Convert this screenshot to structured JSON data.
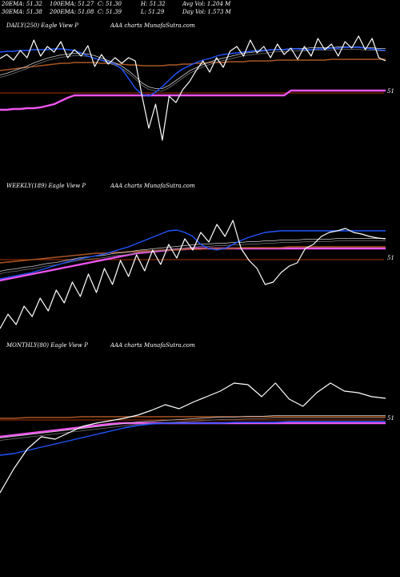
{
  "header": {
    "row1": [
      "20EMA: 51.32",
      "100EMA: 51.27",
      "C: 51.30",
      "H: 51.32",
      "Avg Vol: 1.204 M"
    ],
    "row2": [
      "30EMA: 51.38",
      "200EMA: 51.08",
      "C: 51.39",
      "L: 51.29",
      "Day Vol: 1.573 M"
    ]
  },
  "colors": {
    "background": "#000000",
    "price": "#ffffff",
    "ema_blue": "#2255ff",
    "ema_magenta": "#ee55ee",
    "ema_orange": "#aa5522",
    "ema_gray": "#999999",
    "level_line": "#aa3300"
  },
  "chart_data": [
    {
      "type": "line",
      "title": "DAILY(250) Eagle   View   P",
      "source": "AAA charts MunafaSutra.com",
      "level_label": "51",
      "series": [
        {
          "color": "#ffffff",
          "values": [
            73,
            68,
            75,
            63,
            72,
            50,
            70,
            58,
            65,
            52,
            72,
            62,
            70,
            57,
            83,
            68,
            80,
            72,
            79,
            72,
            76,
            120,
            160,
            130,
            175,
            120,
            128,
            112,
            102,
            88,
            76,
            90,
            72,
            84,
            64,
            58,
            70,
            50,
            66,
            58,
            72,
            55,
            68,
            60,
            74,
            58,
            70,
            48,
            62,
            55,
            70,
            52,
            60,
            45,
            62,
            48,
            72,
            76
          ]
        },
        {
          "color": "#2255ff",
          "values": [
            65,
            64,
            64,
            63,
            63,
            62,
            62,
            62,
            61,
            61,
            62,
            63,
            66,
            70,
            73,
            75,
            77,
            80,
            86,
            98,
            110,
            118,
            120,
            115,
            108,
            100,
            92,
            86,
            82,
            78,
            75,
            73,
            70,
            68,
            67,
            66,
            65,
            64,
            63,
            63,
            62,
            62,
            62,
            61,
            61,
            62,
            62,
            61,
            61,
            60,
            60,
            59,
            59,
            59,
            60,
            61,
            62,
            63
          ]
        },
        {
          "color": "#999999",
          "values": [
            95,
            93,
            90,
            87,
            84,
            80,
            77,
            74,
            72,
            70,
            69,
            68,
            68,
            69,
            71,
            74,
            77,
            80,
            84,
            90,
            97,
            105,
            110,
            112,
            112,
            108,
            102,
            96,
            90,
            86,
            82,
            79,
            76,
            74,
            72,
            70,
            68,
            67,
            66,
            65,
            64,
            63,
            63,
            62,
            62,
            62,
            61,
            61,
            61,
            61,
            60,
            60,
            60,
            60,
            61,
            61,
            62,
            62
          ]
        },
        {
          "color": "#aa5522",
          "values": [
            88,
            87,
            86,
            85,
            84,
            83,
            82,
            81,
            80,
            79,
            79,
            78,
            78,
            78,
            78,
            79,
            79,
            80,
            80,
            81,
            81,
            82,
            82,
            82,
            82,
            81,
            81,
            80,
            80,
            79,
            79,
            78,
            78,
            78,
            77,
            77,
            77,
            76,
            76,
            76,
            76,
            75,
            75,
            75,
            75,
            75,
            75,
            75,
            75,
            74,
            74,
            74,
            74,
            74,
            74,
            74,
            74,
            74
          ]
        },
        {
          "color": "#ee55ee",
          "values": [
            137,
            137,
            136,
            136,
            135,
            135,
            134,
            132,
            130,
            126,
            122,
            119,
            119,
            119,
            119,
            119,
            119,
            119,
            119,
            119,
            119,
            119,
            119,
            119,
            119,
            119,
            119,
            119,
            119,
            119,
            119,
            119,
            119,
            119,
            119,
            119,
            119,
            119,
            119,
            119,
            119,
            119,
            119,
            113,
            113,
            113,
            113,
            113,
            113,
            113,
            113,
            113,
            113,
            113,
            113,
            113,
            113,
            113
          ]
        }
      ]
    },
    {
      "type": "line",
      "title": "WEEKLY(189) Eagle   View   P",
      "source": "AAA charts MunafaSutra.com",
      "level_label": "51",
      "series": [
        {
          "color": "#ffffff",
          "values": [
            410,
            392,
            405,
            382,
            395,
            372,
            388,
            362,
            378,
            352,
            370,
            342,
            365,
            335,
            355,
            325,
            345,
            318,
            338,
            312,
            330,
            305,
            322,
            298,
            312,
            290,
            302,
            280,
            295,
            275,
            310,
            325,
            335,
            355,
            352,
            340,
            332,
            328,
            310,
            305,
            295,
            290,
            288,
            285,
            290,
            292,
            295,
            297,
            298
          ]
        },
        {
          "color": "#2255ff",
          "values": [
            348,
            346,
            344,
            342,
            340,
            337,
            334,
            331,
            328,
            325,
            323,
            321,
            319,
            317,
            314,
            311,
            308,
            304,
            300,
            296,
            292,
            288,
            287,
            290,
            295,
            305,
            310,
            312,
            310,
            305,
            300,
            296,
            293,
            290,
            289,
            288,
            288,
            288,
            288,
            288,
            288,
            288,
            288,
            288,
            288,
            288,
            288,
            288,
            288
          ]
        },
        {
          "color": "#999999",
          "values": [
            340,
            338,
            337,
            335,
            334,
            332,
            330,
            329,
            327,
            325,
            323,
            322,
            321,
            320,
            318,
            317,
            316,
            314,
            313,
            312,
            311,
            310,
            309,
            308,
            307,
            306,
            306,
            305,
            305,
            304,
            304,
            303,
            303,
            302,
            302,
            301,
            301,
            301,
            300,
            300,
            300,
            300,
            299,
            299,
            299,
            299,
            299,
            299,
            299
          ]
        },
        {
          "color": "#aa5522",
          "values": [
            328,
            327,
            326,
            325,
            324,
            323,
            322,
            321,
            320,
            319,
            318,
            317,
            316,
            316,
            315,
            315,
            314,
            314,
            313,
            313,
            312,
            312,
            312,
            311,
            311,
            311,
            310,
            310,
            310,
            310,
            309,
            309,
            309,
            309,
            309,
            309,
            308,
            308,
            308,
            308,
            308,
            308,
            308,
            308,
            308,
            308,
            308,
            308,
            308
          ]
        },
        {
          "color": "#ee55ee",
          "values": [
            350,
            348,
            346,
            344,
            342,
            340,
            338,
            336,
            334,
            332,
            330,
            328,
            326,
            324,
            322,
            320,
            318,
            316,
            315,
            314,
            313,
            312,
            311,
            311,
            310,
            310,
            310,
            310,
            310,
            310,
            310,
            310,
            310,
            310,
            310,
            310,
            310,
            310,
            310,
            310,
            310,
            310,
            310,
            310,
            310,
            310,
            310,
            310,
            310
          ]
        }
      ]
    },
    {
      "type": "line",
      "title": "MONTHLY(80) Eagle   View   P",
      "source": "AAA charts MunafaSutra.com",
      "level_label": "51",
      "series": [
        {
          "color": "#ffffff",
          "values": [
            615,
            585,
            560,
            545,
            548,
            540,
            532,
            528,
            525,
            522,
            518,
            512,
            505,
            510,
            502,
            495,
            488,
            478,
            480,
            495,
            478,
            498,
            507,
            490,
            478,
            488,
            490,
            495,
            497
          ]
        },
        {
          "color": "#2255ff",
          "values": [
            568,
            566,
            562,
            558,
            554,
            550,
            546,
            542,
            538,
            534,
            531,
            529,
            528,
            528,
            528,
            528,
            528,
            527,
            527,
            527,
            527,
            526,
            526,
            526,
            526,
            526,
            526,
            526,
            526
          ]
        },
        {
          "color": "#999999",
          "values": [
            548,
            546,
            544,
            542,
            540,
            538,
            536,
            534,
            532,
            530,
            528,
            527,
            526,
            525,
            524,
            523,
            522,
            522,
            521,
            521,
            520,
            520,
            520,
            520,
            520,
            520,
            520,
            520,
            520
          ]
        },
        {
          "color": "#aa5522",
          "values": [
            522,
            522,
            521,
            521,
            521,
            521,
            520,
            520,
            520,
            520,
            520,
            520,
            520,
            520,
            520,
            520,
            520,
            520,
            520,
            520,
            520,
            520,
            520,
            520,
            520,
            520,
            520,
            520,
            520
          ]
        },
        {
          "color": "#ee55ee",
          "values": [
            545,
            543,
            541,
            539,
            537,
            535,
            533,
            531,
            529,
            528,
            528,
            528,
            528,
            528,
            528,
            528,
            528,
            528,
            528,
            528,
            528,
            528,
            528,
            528,
            528,
            528,
            528,
            528,
            528
          ]
        }
      ]
    }
  ]
}
